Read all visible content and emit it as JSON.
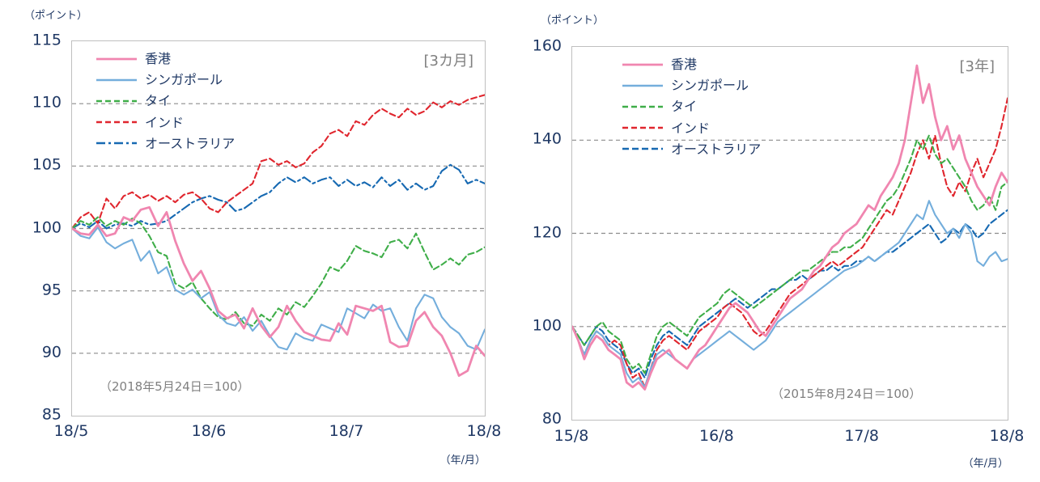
{
  "colors": {
    "axis_text": "#1F3864",
    "muted_text": "#808080",
    "gridline": "#8C8C8C",
    "plot_border": "#BFBFBF"
  },
  "chart_data": [
    {
      "type": "line",
      "period_label": "[3カ月]",
      "base_note": "（2018年5月24日＝100）",
      "ylabel": "（ポイント）",
      "xlabel": "（年/月）",
      "ylim": [
        85,
        115
      ],
      "yticks": [
        85,
        90,
        95,
        100,
        105,
        110,
        115
      ],
      "gridlines": [
        90,
        95,
        100,
        105,
        110
      ],
      "x_labels": [
        "18/5",
        "18/6",
        "18/7",
        "18/8"
      ],
      "grid": "horizontal-dashed",
      "legend_position": "top-left-inside",
      "series": [
        {
          "id": "hongkong",
          "name": "香港",
          "color": "#F086B0",
          "width": 2.8,
          "dash": "",
          "values": [
            100,
            99.6,
            99.5,
            100.3,
            99.4,
            99.6,
            100.9,
            100.6,
            101.5,
            101.7,
            100.2,
            101.3,
            99.0,
            97.2,
            95.8,
            96.6,
            95.2,
            93.4,
            92.8,
            93.1,
            92.0,
            93.6,
            92.2,
            91.3,
            92.1,
            93.8,
            92.6,
            91.7,
            91.4,
            91.1,
            91.0,
            92.4,
            91.5,
            93.8,
            93.6,
            93.4,
            93.8,
            90.9,
            90.5,
            90.6,
            92.6,
            93.3,
            92.1,
            91.4,
            90.0,
            88.2,
            88.6,
            90.6,
            89.8
          ]
        },
        {
          "id": "singapore",
          "name": "シンガポール",
          "color": "#74AEDC",
          "width": 2.1,
          "dash": "",
          "values": [
            100,
            99.4,
            99.2,
            100.1,
            98.9,
            98.4,
            98.8,
            99.1,
            97.4,
            98.2,
            96.4,
            96.9,
            95.1,
            94.7,
            95.1,
            94.4,
            94.9,
            93.1,
            92.4,
            92.2,
            92.9,
            91.8,
            92.6,
            91.4,
            90.5,
            90.3,
            91.6,
            91.2,
            91.0,
            92.3,
            92.0,
            91.7,
            93.6,
            93.2,
            92.8,
            93.9,
            93.4,
            93.6,
            92.1,
            91.0,
            93.6,
            94.7,
            94.4,
            92.9,
            92.1,
            91.6,
            90.6,
            90.3,
            91.9
          ]
        },
        {
          "id": "thailand",
          "name": "タイ",
          "color": "#3FAE49",
          "width": 2.1,
          "dash": "7 4",
          "values": [
            100,
            100.6,
            100.3,
            100.9,
            100.2,
            100.6,
            100.3,
            100.8,
            100.4,
            99.4,
            98.1,
            97.8,
            95.6,
            95.2,
            95.7,
            94.4,
            93.6,
            92.9,
            92.7,
            93.3,
            92.4,
            92.2,
            93.1,
            92.6,
            93.6,
            93.1,
            94.1,
            93.7,
            94.6,
            95.6,
            96.9,
            96.6,
            97.4,
            98.6,
            98.2,
            98.0,
            97.7,
            98.9,
            99.1,
            98.4,
            99.6,
            98.1,
            96.7,
            97.1,
            97.6,
            97.1,
            97.9,
            98.1,
            98.5
          ]
        },
        {
          "id": "india",
          "name": "インド",
          "color": "#E0262E",
          "width": 2.1,
          "dash": "7 4",
          "values": [
            100,
            100.9,
            101.3,
            100.4,
            102.4,
            101.6,
            102.6,
            102.9,
            102.4,
            102.7,
            102.2,
            102.6,
            102.1,
            102.7,
            102.9,
            102.4,
            101.6,
            101.3,
            102.1,
            102.6,
            103.1,
            103.6,
            105.4,
            105.6,
            105.1,
            105.4,
            104.9,
            105.2,
            106.1,
            106.6,
            107.6,
            107.9,
            107.4,
            108.6,
            108.3,
            109.1,
            109.6,
            109.2,
            108.9,
            109.6,
            109.1,
            109.4,
            110.1,
            109.7,
            110.2,
            109.9,
            110.3,
            110.5,
            110.7
          ]
        },
        {
          "id": "australia",
          "name": "オーストラリア",
          "color": "#1669B2",
          "width": 2.1,
          "dash": "11 4 3 4",
          "values": [
            100,
            100.4,
            100.1,
            100.6,
            100.0,
            100.3,
            100.4,
            100.2,
            100.6,
            100.3,
            100.4,
            100.6,
            101.1,
            101.6,
            102.1,
            102.4,
            102.6,
            102.3,
            102.1,
            101.4,
            101.6,
            102.1,
            102.6,
            102.9,
            103.6,
            104.1,
            103.7,
            104.1,
            103.6,
            103.9,
            104.1,
            103.4,
            103.9,
            103.4,
            103.7,
            103.3,
            104.1,
            103.4,
            103.9,
            103.1,
            103.6,
            103.1,
            103.4,
            104.6,
            105.1,
            104.7,
            103.6,
            103.9,
            103.6
          ]
        }
      ]
    },
    {
      "type": "line",
      "period_label": "[3年]",
      "base_note": "（2015年8月24日＝100）",
      "ylabel": "（ポイント）",
      "xlabel": "（年/月）",
      "ylim": [
        80,
        160
      ],
      "yticks": [
        80,
        100,
        120,
        140,
        160
      ],
      "gridlines": [
        100,
        120,
        140
      ],
      "x_labels": [
        "15/8",
        "16/8",
        "17/8",
        "18/8"
      ],
      "grid": "horizontal-dashed",
      "legend_position": "top-left-inside",
      "series": [
        {
          "id": "hongkong",
          "name": "香港",
          "color": "#F086B0",
          "width": 2.8,
          "dash": "",
          "values": [
            100,
            97,
            93,
            96,
            98,
            97,
            95,
            94,
            93,
            88,
            87,
            88,
            86.5,
            90,
            93,
            94,
            95,
            93,
            92,
            91,
            93,
            95,
            96,
            98,
            100,
            102,
            104,
            105,
            104,
            103,
            101,
            99,
            98,
            100,
            102,
            104,
            106,
            107,
            108,
            110,
            112,
            113,
            115,
            117,
            118,
            120,
            121,
            122,
            124,
            126,
            125,
            128,
            130,
            132,
            135,
            140,
            148,
            156,
            148,
            152,
            145,
            140,
            143,
            138,
            141,
            136,
            133,
            130,
            128,
            126,
            130,
            133,
            131
          ]
        },
        {
          "id": "singapore",
          "name": "シンガポール",
          "color": "#74AEDC",
          "width": 2.1,
          "dash": "",
          "values": [
            100,
            97,
            94,
            97,
            99,
            98,
            96,
            95,
            94,
            90,
            88,
            89,
            87,
            91,
            94,
            95,
            94,
            93,
            92,
            91,
            93,
            94,
            95,
            96,
            97,
            98,
            99,
            98,
            97,
            96,
            95,
            96,
            97,
            99,
            101,
            102,
            103,
            104,
            105,
            106,
            107,
            108,
            109,
            110,
            111,
            112,
            112.5,
            113,
            114,
            115,
            114,
            115,
            116,
            117,
            118,
            120,
            122,
            124,
            123,
            127,
            124,
            122,
            120,
            121,
            119,
            122,
            120,
            114,
            113,
            115,
            116,
            114,
            114.5
          ]
        },
        {
          "id": "thailand",
          "name": "タイ",
          "color": "#3FAE49",
          "width": 2.1,
          "dash": "7 4",
          "values": [
            100,
            98,
            96,
            98,
            100,
            101,
            99,
            98,
            97,
            93,
            91,
            92,
            90,
            94,
            98,
            100,
            101,
            100,
            99,
            98,
            100,
            102,
            103,
            104,
            105,
            107,
            108,
            107,
            106,
            105,
            104,
            105,
            106,
            107,
            108,
            109,
            110,
            111,
            112,
            112,
            113,
            114,
            115,
            116,
            116,
            117,
            117,
            118,
            119,
            121,
            123,
            125,
            127,
            128,
            130,
            133,
            136,
            140,
            138,
            141,
            137,
            135,
            136,
            134,
            132,
            130,
            127,
            125,
            126,
            128,
            125,
            130,
            131
          ]
        },
        {
          "id": "india",
          "name": "インド",
          "color": "#E0262E",
          "width": 2.1,
          "dash": "7 4",
          "values": [
            100,
            97,
            94,
            97,
            99,
            98,
            96,
            97,
            96,
            92,
            89,
            90,
            87,
            91,
            95,
            97,
            98,
            97,
            96,
            95,
            97,
            99,
            100,
            101,
            102,
            104,
            105,
            104,
            103,
            101,
            99,
            98,
            99,
            101,
            103,
            105,
            107,
            108,
            109,
            110,
            111,
            112,
            113,
            114,
            113,
            114,
            115,
            116,
            117,
            119,
            121,
            123,
            125,
            124,
            127,
            130,
            133,
            137,
            140,
            136,
            141,
            135,
            130,
            128,
            131,
            129,
            133,
            136,
            132,
            135,
            138,
            143,
            149
          ]
        },
        {
          "id": "australia",
          "name": "オーストラリア",
          "color": "#1669B2",
          "width": 2.1,
          "dash": "8 4",
          "values": [
            100,
            98,
            96,
            98,
            100,
            99,
            97,
            96,
            95,
            92,
            90,
            91,
            89,
            93,
            96,
            98,
            99,
            98,
            97,
            96,
            98,
            100,
            101,
            102,
            103,
            104,
            105,
            106,
            105,
            104,
            105,
            106,
            107,
            108,
            108,
            109,
            110,
            110,
            111,
            110,
            111,
            112,
            112,
            113,
            112,
            113,
            113,
            114,
            114,
            115,
            114,
            115,
            116,
            116,
            117,
            118,
            119,
            120,
            121,
            122,
            120,
            118,
            119,
            121,
            120,
            122,
            121,
            119,
            120,
            122,
            123,
            124,
            125
          ]
        }
      ]
    }
  ]
}
